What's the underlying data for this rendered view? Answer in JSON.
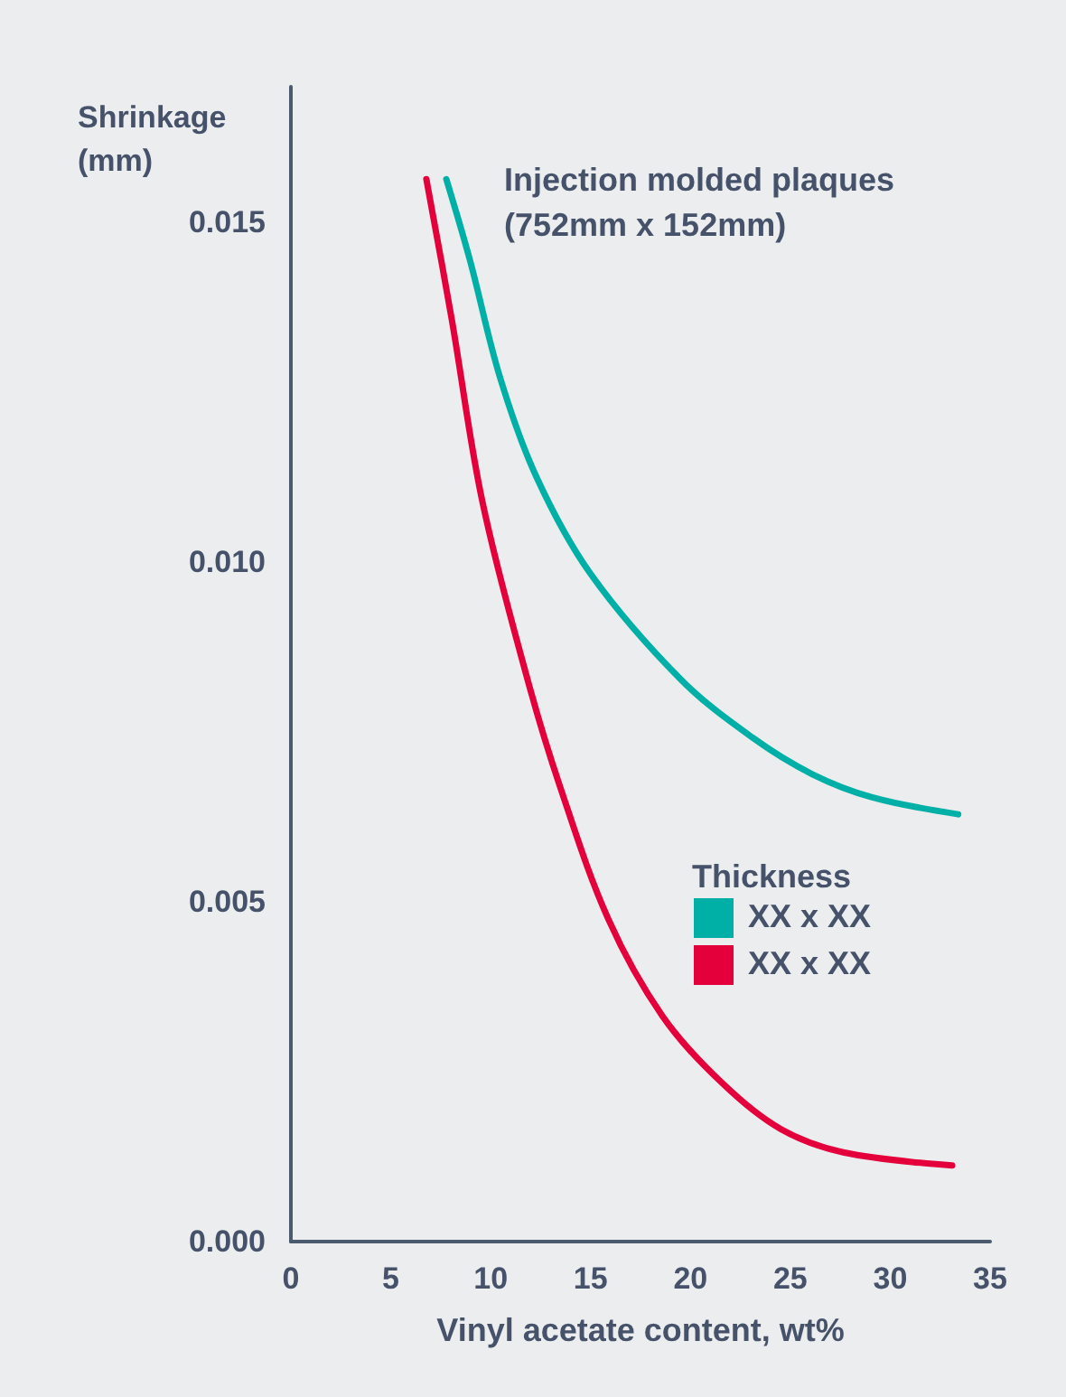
{
  "chart_data": {
    "type": "line",
    "title": "Injection molded plaques (752mm x 152mm)",
    "xlabel": "Vinyl acetate content, wt%",
    "ylabel": "Shrinkage (mm)",
    "legend_title": "Thickness",
    "legend": "right",
    "grid": false,
    "marker": "none",
    "line_style": "solid",
    "xlim": [
      0,
      35
    ],
    "xticks": [
      0,
      5,
      10,
      15,
      20,
      25,
      30,
      35
    ],
    "ylim": [
      0,
      0.017
    ],
    "yticks": [
      {
        "value": 0,
        "label": "0.000"
      },
      {
        "value": 0.005,
        "label": "0.005"
      },
      {
        "value": 0.01,
        "label": "0.010"
      },
      {
        "value": 0.015,
        "label": "0.015"
      }
    ],
    "series": [
      {
        "name": "XX x XX",
        "color": "#00b0a6",
        "x": [
          7.78,
          8.95,
          10.49,
          12.3,
          15.0,
          19.5,
          23.1,
          26.1,
          29.1,
          33.4
        ],
        "values": [
          0.01564,
          0.01446,
          0.0127,
          0.01125,
          0.00983,
          0.00828,
          0.00742,
          0.00688,
          0.00654,
          0.00629
        ]
      },
      {
        "name": "XX x XX",
        "color": "#e4003a",
        "x": [
          6.78,
          8.05,
          9.58,
          11.84,
          13.47,
          15.9,
          18.6,
          21.6,
          24.5,
          27.7,
          33.1
        ],
        "values": [
          0.01564,
          0.01358,
          0.0109,
          0.00828,
          0.0067,
          0.00474,
          0.00332,
          0.00233,
          0.00166,
          0.00131,
          0.00112
        ]
      }
    ]
  }
}
